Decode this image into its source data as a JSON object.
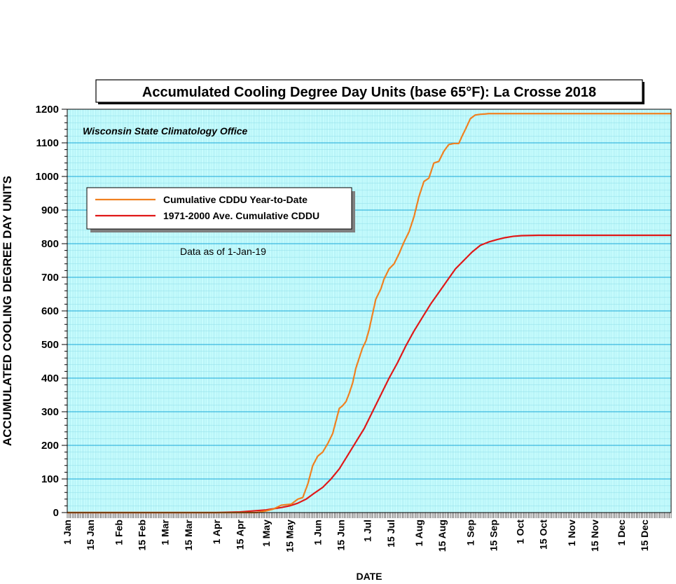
{
  "chart_data": {
    "type": "line",
    "title": "Accumulated Cooling Degree Day Units (base 65°F): La Crosse 2018",
    "xlabel": "DATE",
    "ylabel": "ACCUMULATED COOLING DEGREE DAY UNITS",
    "ylim": [
      0,
      1200
    ],
    "yticks": [
      0,
      100,
      200,
      300,
      400,
      500,
      600,
      700,
      800,
      900,
      1000,
      1100,
      1200
    ],
    "xlim": [
      "1 Jan",
      "31 Dec"
    ],
    "xtick_labels": [
      "1 Jan",
      "15 Jan",
      "1 Feb",
      "15 Feb",
      "1 Mar",
      "15 Mar",
      "1 Apr",
      "15 Apr",
      "1 May",
      "15 May",
      "1 Jun",
      "15 Jun",
      "1 Jul",
      "15 Jul",
      "1 Aug",
      "15 Aug",
      "1 Sep",
      "15 Sep",
      "1 Oct",
      "15 Oct",
      "1 Nov",
      "15 Nov",
      "1 Dec",
      "15 Dec"
    ],
    "grid": true,
    "legend_position": "upper-left",
    "annotations": [
      "Wisconsin State Climatology Office",
      "Data as of 1-Jan-19"
    ],
    "series": [
      {
        "name": "Cumulative CDDU Year-to-Date",
        "color": "#f08020",
        "x": [
          "1 Jan",
          "25 Apr",
          "1 May",
          "5 May",
          "10 May",
          "16 May",
          "20 May",
          "23 May",
          "26 May",
          "29 May",
          "1 Jun",
          "4 Jun",
          "7 Jun",
          "10 Jun",
          "14 Jun",
          "16 Jun",
          "18 Jun",
          "20 Jun",
          "22 Jun",
          "24 Jun",
          "26 Jun",
          "28 Jun",
          "30 Jun",
          "2 Jul",
          "4 Jul",
          "6 Jul",
          "9 Jul",
          "11 Jul",
          "14 Jul",
          "17 Jul",
          "20 Jul",
          "23 Jul",
          "26 Jul",
          "29 Jul",
          "1 Aug",
          "4 Aug",
          "7 Aug",
          "10 Aug",
          "13 Aug",
          "16 Aug",
          "19 Aug",
          "22 Aug",
          "25 Aug",
          "27 Aug",
          "29 Aug",
          "1 Sep",
          "4 Sep",
          "7 Sep",
          "10 Sep",
          "12 Sep",
          "14 Sep",
          "16 Sep",
          "18 Sep",
          "21 Sep",
          "25 Sep",
          "1 Oct",
          "4 Oct",
          "31 Dec"
        ],
        "y": [
          0,
          0,
          5,
          10,
          22,
          25,
          40,
          45,
          85,
          140,
          168,
          180,
          205,
          235,
          310,
          318,
          330,
          355,
          385,
          430,
          460,
          490,
          510,
          545,
          590,
          635,
          665,
          695,
          725,
          740,
          770,
          805,
          835,
          880,
          940,
          985,
          995,
          1040,
          1045,
          1075,
          1095,
          1098,
          1098,
          1120,
          1140,
          1172,
          1183,
          1185,
          1186,
          1187,
          1187,
          1187,
          1187,
          1187,
          1187,
          1187,
          1187,
          1187
        ]
      },
      {
        "name": "1971-2000 Ave. Cumulative CDDU",
        "color": "#e01818",
        "x": [
          "1 Jan",
          "1 Apr",
          "15 Apr",
          "1 May",
          "10 May",
          "15 May",
          "20 May",
          "25 May",
          "30 May",
          "4 Jun",
          "9 Jun",
          "14 Jun",
          "19 Jun",
          "24 Jun",
          "29 Jun",
          "4 Jul",
          "9 Jul",
          "14 Jul",
          "19 Jul",
          "24 Jul",
          "29 Jul",
          "3 Aug",
          "8 Aug",
          "13 Aug",
          "18 Aug",
          "23 Aug",
          "28 Aug",
          "2 Sep",
          "7 Sep",
          "12 Sep",
          "17 Sep",
          "22 Sep",
          "27 Sep",
          "2 Oct",
          "12 Oct",
          "22 Oct",
          "1 Nov",
          "1 Dec",
          "31 Dec"
        ],
        "y": [
          0,
          0,
          2,
          8,
          15,
          20,
          28,
          40,
          58,
          75,
          100,
          130,
          170,
          210,
          250,
          300,
          350,
          400,
          445,
          495,
          540,
          580,
          620,
          655,
          690,
          725,
          750,
          775,
          795,
          805,
          812,
          818,
          822,
          824,
          825,
          825,
          825,
          825,
          825
        ]
      }
    ]
  }
}
